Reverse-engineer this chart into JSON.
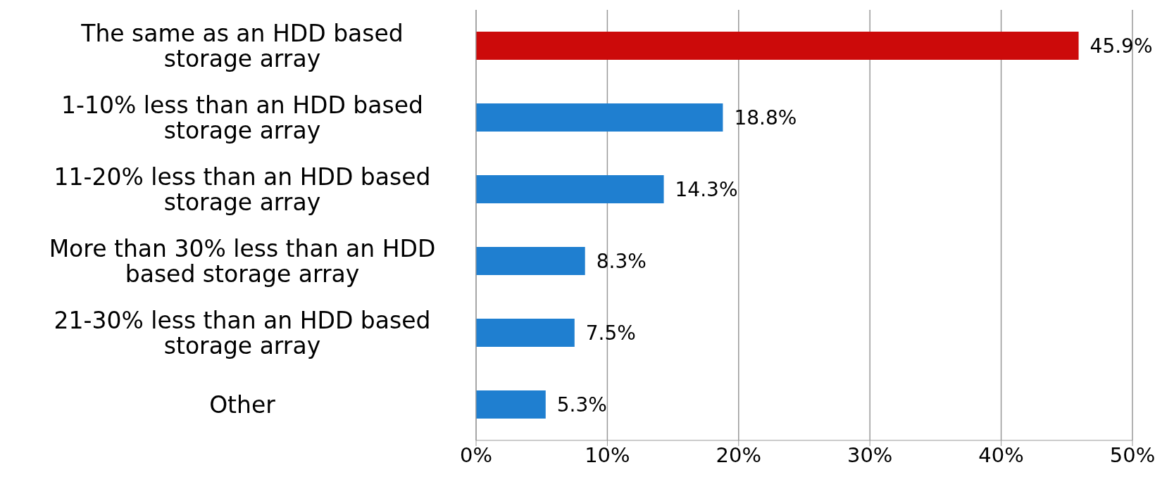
{
  "chart_data": {
    "type": "bar",
    "orientation": "horizontal",
    "categories": [
      "The same as an HDD based storage array",
      "1-10% less than an HDD based storage array",
      "11-20% less than an HDD based storage array",
      "More than 30% less than an HDD based storage array",
      "21-30% less than an HDD based storage array",
      "Other"
    ],
    "values": [
      45.9,
      18.8,
      14.3,
      8.3,
      7.5,
      5.3
    ],
    "colors": [
      "#cc0a0a",
      "#1f7fd0",
      "#1f7fd0",
      "#1f7fd0",
      "#1f7fd0",
      "#1f7fd0"
    ],
    "value_labels": [
      "45.9%",
      "18.8%",
      "14.3%",
      "8.3%",
      "7.5%",
      "5.3%"
    ],
    "xlim": [
      0,
      50
    ],
    "xticks": [
      {
        "value": 0,
        "label": "0%"
      },
      {
        "value": 10,
        "label": "10%"
      },
      {
        "value": 20,
        "label": "20%"
      },
      {
        "value": 30,
        "label": "30%"
      },
      {
        "value": 40,
        "label": "40%"
      },
      {
        "value": 50,
        "label": "50%"
      }
    ],
    "grid": "x",
    "legend": false
  }
}
